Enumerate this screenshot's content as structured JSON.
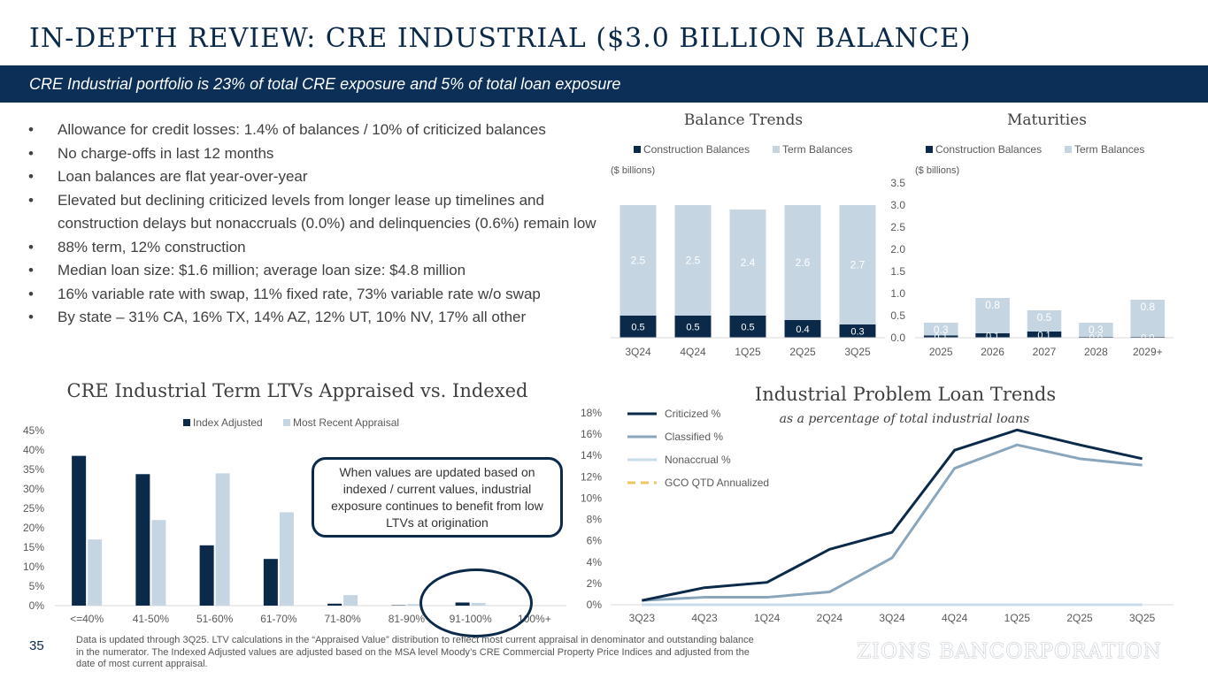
{
  "header": {
    "title": "IN-DEPTH REVIEW: CRE INDUSTRIAL ($3.0 BILLION BALANCE)",
    "subtitle": "CRE Industrial portfolio is 23% of total CRE exposure and 5% of total loan exposure"
  },
  "bullets": [
    "Allowance for credit losses: 1.4% of balances / 10% of criticized balances",
    "No charge-offs in last 12 months",
    "Loan balances are flat year-over-year",
    "Elevated but declining criticized levels from longer lease up timelines and construction delays but nonaccruals (0.0%) and delinquencies (0.6%) remain low",
    "88% term, 12% construction",
    "Median loan size: $1.6 million; average loan size: $4.8 million",
    "16% variable rate with swap, 11% fixed rate, 73% variable rate w/o swap",
    "By state – 31% CA, 16% TX, 14% AZ, 12% UT, 10% NV, 17% all other"
  ],
  "colors": {
    "navy": "#0b2a4a",
    "light_blue": "#c5d5e2",
    "mid_blue": "#8aa6bd",
    "pale_blue": "#c9dce9",
    "gold": "#f0c566"
  },
  "chart_data": [
    {
      "id": "balance_trends",
      "type": "bar",
      "stacked": true,
      "title": "Balance Trends",
      "unit_note": "($ billions)",
      "categories": [
        "3Q24",
        "4Q24",
        "1Q25",
        "2Q25",
        "3Q25"
      ],
      "series": [
        {
          "name": "Construction Balances",
          "values": [
            0.5,
            0.5,
            0.5,
            0.4,
            0.3
          ],
          "labels": [
            "0.5",
            "0.5",
            "0.5",
            "0.4",
            "0.3"
          ]
        },
        {
          "name": "Term Balances",
          "values": [
            2.5,
            2.5,
            2.4,
            2.6,
            2.7
          ],
          "labels": [
            "2.5",
            "2.5",
            "2.4",
            "2.6",
            "2.7"
          ]
        }
      ],
      "ylim": [
        0,
        3.5
      ],
      "yticks": [
        "0.0",
        "0.5",
        "1.0",
        "1.5",
        "2.0",
        "2.5",
        "3.0",
        "3.5"
      ],
      "legend": "top"
    },
    {
      "id": "maturities",
      "type": "bar",
      "stacked": true,
      "title": "Maturities",
      "unit_note": "($ billions)",
      "categories": [
        "2025",
        "2026",
        "2027",
        "2028",
        "2029+"
      ],
      "series": [
        {
          "name": "Construction Balances",
          "values": [
            0.05,
            0.1,
            0.14,
            0.02,
            0.02
          ],
          "labels": [
            "0.1",
            "0.1",
            "0.1",
            "0.0",
            "0.0"
          ]
        },
        {
          "name": "Term Balances",
          "values": [
            0.29,
            0.8,
            0.48,
            0.32,
            0.84
          ],
          "labels": [
            "0.3",
            "0.8",
            "0.5",
            "0.3",
            "0.8"
          ]
        }
      ],
      "ylim": [
        0,
        3.5
      ],
      "legend": "top"
    },
    {
      "id": "ltv",
      "type": "bar",
      "title": "CRE Industrial Term LTVs Appraised vs. Indexed",
      "categories": [
        "<=40%",
        "41-50%",
        "51-60%",
        "61-70%",
        "71-80%",
        "81-90%",
        "91-100%",
        "100%+"
      ],
      "series": [
        {
          "name": "Index Adjusted",
          "values": [
            38.5,
            33.8,
            15.5,
            12.0,
            0.5,
            0.1,
            0.8,
            0.0
          ]
        },
        {
          "name": "Most Recent Appraisal",
          "values": [
            17.0,
            22.0,
            34.0,
            24.0,
            2.7,
            0.4,
            0.7,
            0.0
          ]
        }
      ],
      "ylim": [
        0,
        45
      ],
      "yticks": [
        "0%",
        "5%",
        "10%",
        "15%",
        "20%",
        "25%",
        "30%",
        "35%",
        "40%",
        "45%"
      ],
      "legend": "top",
      "annotation": "When values are updated based on indexed / current values, industrial exposure continues to benefit from low LTVs at origination"
    },
    {
      "id": "problem_loans",
      "type": "line",
      "title": "Industrial Problem Loan Trends",
      "subtitle": "as a percentage of total industrial loans",
      "x": [
        "3Q23",
        "4Q23",
        "1Q24",
        "2Q24",
        "3Q24",
        "4Q24",
        "1Q25",
        "2Q25",
        "3Q25"
      ],
      "series": [
        {
          "name": "Criticized %",
          "values": [
            0.4,
            1.6,
            2.1,
            5.2,
            6.8,
            14.5,
            16.4,
            15.0,
            13.7
          ]
        },
        {
          "name": "Classified %",
          "values": [
            0.4,
            0.7,
            0.7,
            1.2,
            4.4,
            12.8,
            15.0,
            13.7,
            13.1
          ]
        },
        {
          "name": "Nonaccrual %",
          "values": [
            0.0,
            0.0,
            0.0,
            0.0,
            0.0,
            0.0,
            0.0,
            0.0,
            0.0
          ]
        },
        {
          "name": "GCO QTD Annualized",
          "values": [
            0.0,
            0.0,
            0.0,
            0.0,
            0.0,
            0.0,
            0.0,
            0.0,
            0.0
          ]
        }
      ],
      "ylim": [
        0,
        18
      ],
      "yticks": [
        "0%",
        "2%",
        "4%",
        "6%",
        "8%",
        "10%",
        "12%",
        "14%",
        "16%",
        "18%"
      ],
      "legend": "top-left"
    }
  ],
  "footer": {
    "page_number": "35",
    "footnote": "Data is updated through 3Q25.  LTV calculations in the “Appraised Value” distribution to reflect most current appraisal in denominator and outstanding balance in the numerator. The Indexed Adjusted values are adjusted based on the MSA level Moody’s CRE Commercial Property Price Indices and adjusted from the date of most current appraisal.",
    "logo_text": "ZIONS BANCORPORATION"
  }
}
